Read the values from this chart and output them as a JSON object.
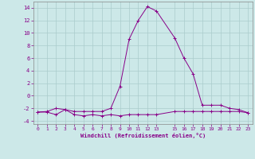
{
  "xlabel": "Windchill (Refroidissement éolien,°C)",
  "background_color": "#cce8e8",
  "grid_color": "#aacccc",
  "line_color": "#880088",
  "spine_color": "#888888",
  "xlim": [
    -0.5,
    23.5
  ],
  "ylim": [
    -4.5,
    15.0
  ],
  "xticks": [
    0,
    1,
    2,
    3,
    4,
    5,
    6,
    7,
    8,
    9,
    10,
    11,
    12,
    13,
    15,
    16,
    17,
    18,
    19,
    20,
    21,
    22,
    23
  ],
  "yticks": [
    -4,
    -2,
    0,
    2,
    4,
    6,
    8,
    10,
    12,
    14
  ],
  "series1_x": [
    0,
    1,
    2,
    3,
    4,
    5,
    6,
    7,
    8,
    9,
    10,
    11,
    12,
    13,
    15,
    16,
    17,
    18,
    19,
    20,
    21,
    22,
    23
  ],
  "series1_y": [
    -2.6,
    -2.6,
    -3.0,
    -2.2,
    -3.0,
    -3.2,
    -3.0,
    -3.2,
    -3.0,
    -3.2,
    -3.0,
    -3.0,
    -3.0,
    -3.0,
    -2.5,
    -2.5,
    -2.5,
    -2.5,
    -2.5,
    -2.5,
    -2.5,
    -2.5,
    -2.7
  ],
  "series2_x": [
    0,
    1,
    2,
    3,
    4,
    5,
    6,
    7,
    8,
    9,
    10,
    11,
    12,
    13,
    15,
    16,
    17,
    18,
    19,
    20,
    21,
    22,
    23
  ],
  "series2_y": [
    -2.6,
    -2.5,
    -2.0,
    -2.2,
    -2.5,
    -2.5,
    -2.5,
    -2.5,
    -2.0,
    1.5,
    9.0,
    12.0,
    14.2,
    13.5,
    9.2,
    6.0,
    3.5,
    -1.5,
    -1.5,
    -1.5,
    -2.0,
    -2.2,
    -2.7
  ]
}
